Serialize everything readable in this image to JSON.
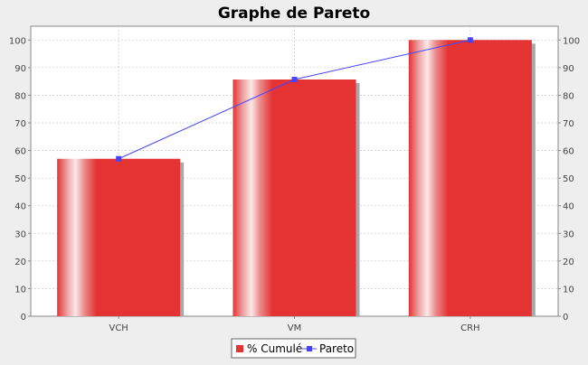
{
  "chart_data": {
    "type": "bar",
    "title": "Graphe de Pareto",
    "categories": [
      "VCH",
      "VM",
      "CRH"
    ],
    "series": [
      {
        "name": "% Cumulé",
        "type": "bar",
        "values": [
          57,
          85.7,
          100
        ],
        "color": "#e53333"
      },
      {
        "name": "Pareto",
        "type": "line",
        "values": [
          57,
          85.7,
          100
        ],
        "color": "#4444ff"
      }
    ],
    "xlabel": "",
    "ylabel": "",
    "ylim": [
      0,
      105
    ],
    "yticks": [
      0,
      10,
      20,
      30,
      40,
      50,
      60,
      70,
      80,
      90,
      100
    ],
    "y_axis_right": true,
    "grid": true,
    "legend_position": "bottom-center"
  }
}
